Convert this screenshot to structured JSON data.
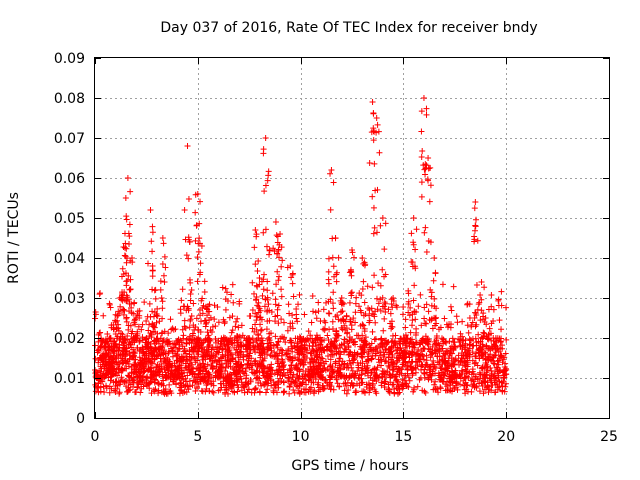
{
  "chart_data": {
    "type": "scatter",
    "title": "Day 037 of 2016, Rate Of TEC Index for receiver bndy",
    "xlabel": "GPS time / hours",
    "ylabel": "ROTI / TECUs",
    "xlim": [
      0,
      25
    ],
    "ylim": [
      0,
      0.09
    ],
    "x_ticks": [
      0,
      5,
      10,
      15,
      20,
      25
    ],
    "x_tick_labels": [
      "0",
      "5",
      "10",
      "15",
      "20",
      "25"
    ],
    "y_ticks": [
      0,
      0.01,
      0.02,
      0.03,
      0.04,
      0.05,
      0.06,
      0.07,
      0.08,
      0.09
    ],
    "y_tick_labels": [
      "0",
      "0.01",
      "0.02",
      "0.03",
      "0.04",
      "0.05",
      "0.06",
      "0.07",
      "0.08",
      "0.09"
    ],
    "grid": true,
    "marker": "plus",
    "marker_color": "#ff0000",
    "x_data_range": [
      0,
      20
    ],
    "series": [
      {
        "values_sampled": [
          [
            0.0,
            0.012
          ],
          [
            0.2,
            0.01
          ],
          [
            0.4,
            0.016
          ],
          [
            0.6,
            0.021
          ],
          [
            0.8,
            0.018
          ],
          [
            1.0,
            0.024
          ],
          [
            1.2,
            0.03
          ],
          [
            1.4,
            0.036
          ],
          [
            1.5,
            0.055
          ],
          [
            1.6,
            0.06
          ],
          [
            1.8,
            0.04
          ],
          [
            2.0,
            0.025
          ],
          [
            2.2,
            0.014
          ],
          [
            2.5,
            0.02
          ],
          [
            2.7,
            0.052
          ],
          [
            2.8,
            0.038
          ],
          [
            3.0,
            0.026
          ],
          [
            3.3,
            0.045
          ],
          [
            3.5,
            0.015
          ],
          [
            4.0,
            0.011
          ],
          [
            4.5,
            0.068
          ],
          [
            4.7,
            0.032
          ],
          [
            5.0,
            0.056
          ],
          [
            5.2,
            0.043
          ],
          [
            5.5,
            0.028
          ],
          [
            6.0,
            0.012
          ],
          [
            6.5,
            0.009
          ],
          [
            7.0,
            0.014
          ],
          [
            7.5,
            0.02
          ],
          [
            7.8,
            0.047
          ],
          [
            8.0,
            0.035
          ],
          [
            8.3,
            0.07
          ],
          [
            8.5,
            0.042
          ],
          [
            8.8,
            0.049
          ],
          [
            9.0,
            0.046
          ],
          [
            9.5,
            0.038
          ],
          [
            10.0,
            0.02
          ],
          [
            10.5,
            0.012
          ],
          [
            11.0,
            0.015
          ],
          [
            11.5,
            0.062
          ],
          [
            11.7,
            0.045
          ],
          [
            12.0,
            0.03
          ],
          [
            12.5,
            0.042
          ],
          [
            13.0,
            0.04
          ],
          [
            13.5,
            0.079
          ],
          [
            13.7,
            0.075
          ],
          [
            14.0,
            0.05
          ],
          [
            14.5,
            0.03
          ],
          [
            15.0,
            0.02
          ],
          [
            15.5,
            0.05
          ],
          [
            16.0,
            0.08
          ],
          [
            16.2,
            0.065
          ],
          [
            16.5,
            0.04
          ],
          [
            17.0,
            0.015
          ],
          [
            17.5,
            0.011
          ],
          [
            18.0,
            0.018
          ],
          [
            18.5,
            0.054
          ],
          [
            18.8,
            0.034
          ],
          [
            19.0,
            0.025
          ],
          [
            19.5,
            0.02
          ],
          [
            20.0,
            0.012
          ]
        ]
      }
    ]
  }
}
